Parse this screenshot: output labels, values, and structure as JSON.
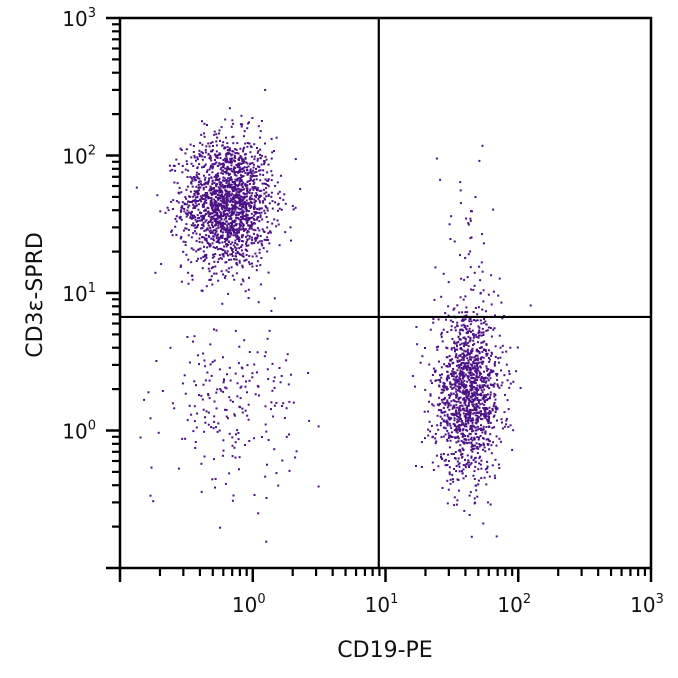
{
  "chart_data": {
    "type": "scatter",
    "title": "",
    "xlabel": "CD19-PE",
    "ylabel": "CD3ε-SPRD",
    "x_scale": "log",
    "y_scale": "log",
    "xlim": [
      0.1,
      1000
    ],
    "ylim": [
      0.1,
      1000
    ],
    "x_ticks": [
      {
        "base": "10",
        "exp": "0",
        "value": 1
      },
      {
        "base": "10",
        "exp": "1",
        "value": 10
      },
      {
        "base": "10",
        "exp": "2",
        "value": 100
      },
      {
        "base": "10",
        "exp": "3",
        "value": 1000
      }
    ],
    "y_ticks": [
      {
        "base": "10",
        "exp": "0",
        "value": 1
      },
      {
        "base": "10",
        "exp": "1",
        "value": 10
      },
      {
        "base": "10",
        "exp": "2",
        "value": 100
      },
      {
        "base": "10",
        "exp": "3",
        "value": 1000
      }
    ],
    "quadrant_gates": {
      "x": 8.9,
      "y": 6.7
    },
    "grid": false,
    "point_color": "#4b0f86",
    "populations": [
      {
        "x_center": 0.65,
        "y_center": 45,
        "x_spread_log10": 0.17,
        "y_spread_log10": 0.24,
        "count": 1800
      },
      {
        "x_center": 42,
        "y_center": 1.8,
        "x_spread_log10": 0.13,
        "y_spread_log10": 0.3,
        "count": 1400
      },
      {
        "x_center": 0.7,
        "y_center": 1.5,
        "x_spread_log10": 0.25,
        "y_spread_log10": 0.28,
        "count": 220
      },
      {
        "x_center": 40,
        "y_center": 25,
        "x_spread_log10": 0.12,
        "y_spread_log10": 0.35,
        "count": 45
      }
    ]
  }
}
